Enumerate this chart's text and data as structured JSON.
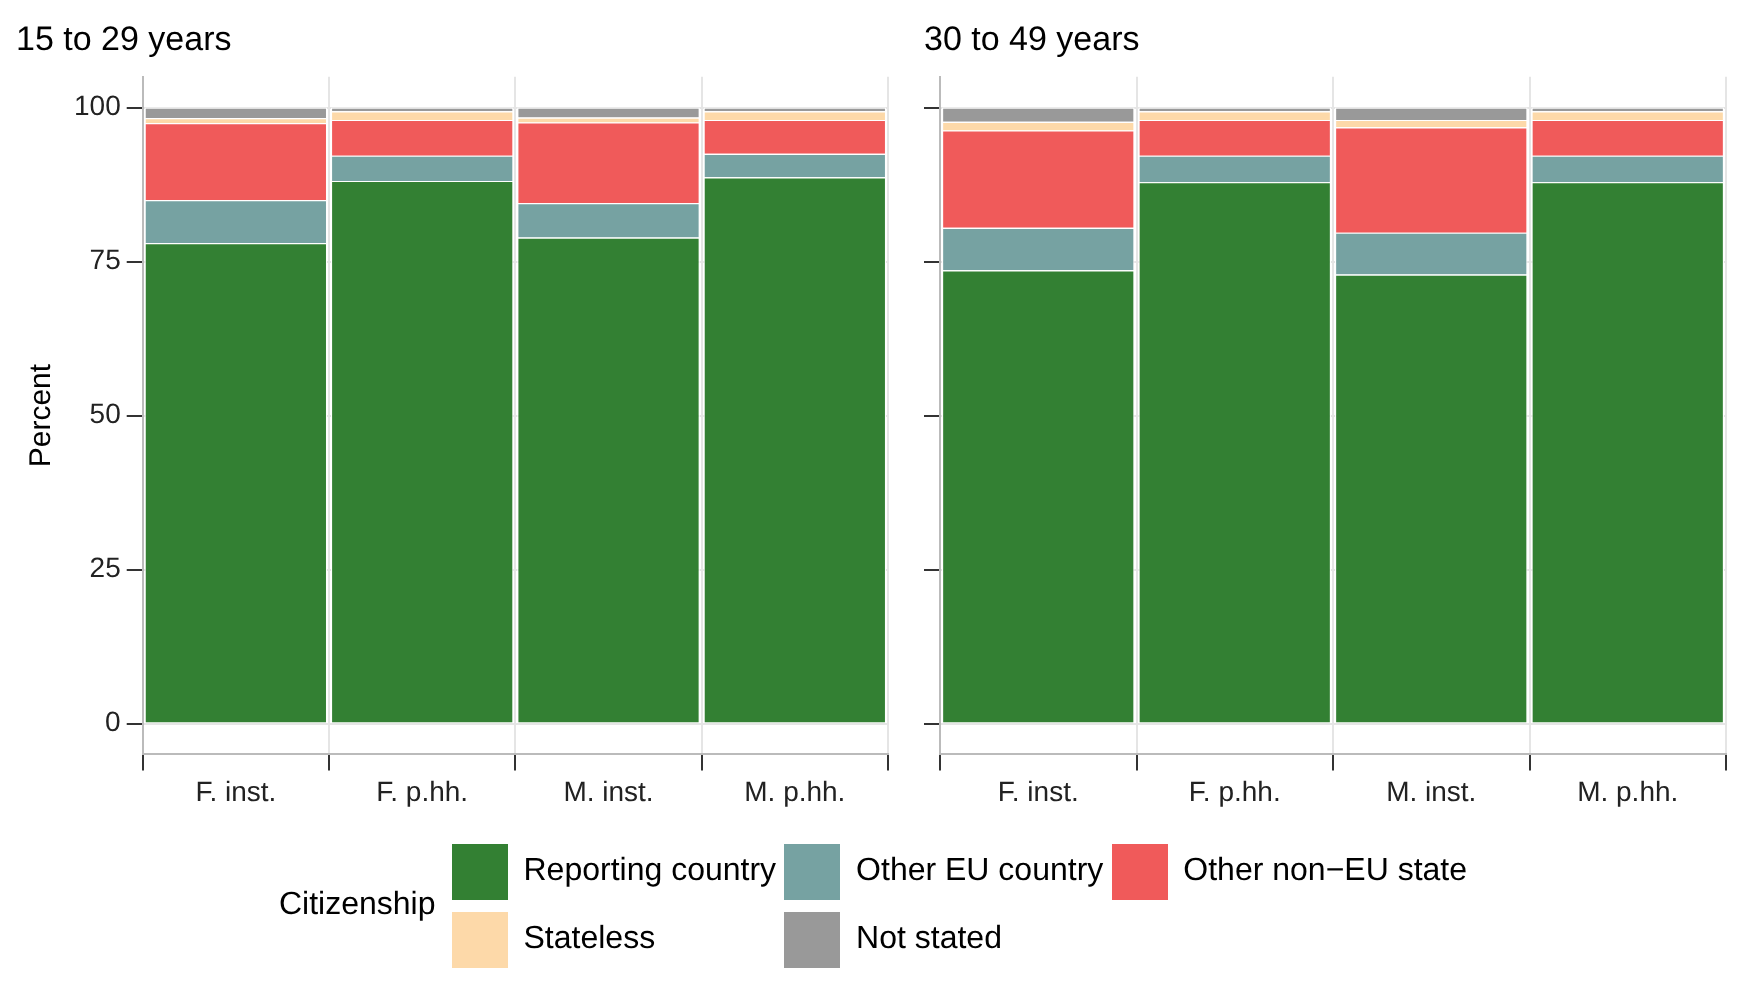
{
  "chart_data": [
    {
      "type": "bar",
      "title": "15 to 29 years",
      "ylabel": "Percent",
      "legend_title": "Citizenship",
      "legend": "bottom",
      "stacked": true,
      "grid": true,
      "categories": [
        "F. inst.",
        "F. p.hh.",
        "M. inst.",
        "M. p.hh."
      ],
      "ylim": [
        -5,
        105
      ],
      "yticks": [
        0,
        25,
        50,
        75,
        100
      ],
      "series": [
        {
          "name": "Reporting country",
          "color": "#338033",
          "values": [
            78,
            88.1,
            78.9,
            88.7
          ]
        },
        {
          "name": "Other EU country",
          "color": "#76a2a2",
          "values": [
            7,
            4.1,
            5.6,
            3.8
          ]
        },
        {
          "name": "Other non−EU state",
          "color": "#f05a5a",
          "values": [
            12.5,
            5.8,
            13.1,
            5.5
          ]
        },
        {
          "name": "Stateless",
          "color": "#fdd9a9",
          "values": [
            0.8,
            1.4,
            0.8,
            1.4
          ]
        },
        {
          "name": "Not stated",
          "color": "#999999",
          "values": [
            1.7,
            0.6,
            1.6,
            0.6
          ]
        }
      ]
    },
    {
      "type": "bar",
      "title": "30 to 49 years",
      "stacked": true,
      "grid": true,
      "tick_labels": "x",
      "categories": [
        "F. inst.",
        "F. p.hh.",
        "M. inst.",
        "M. p.hh."
      ],
      "ylim": [
        -5,
        105
      ],
      "yticks": [
        0,
        25,
        50,
        75,
        100
      ],
      "series": [
        {
          "color": "#338033",
          "values": [
            73.6,
            87.9,
            72.9,
            87.9
          ]
        },
        {
          "color": "#76a2a2",
          "values": [
            6.9,
            4.3,
            6.8,
            4.3
          ]
        },
        {
          "color": "#f05a5a",
          "values": [
            15.8,
            5.8,
            17.1,
            5.8
          ]
        },
        {
          "color": "#fdd9a9",
          "values": [
            1.4,
            1.4,
            1.2,
            1.4
          ]
        },
        {
          "color": "#999999",
          "values": [
            2.3,
            0.6,
            2,
            0.6
          ]
        }
      ]
    }
  ]
}
